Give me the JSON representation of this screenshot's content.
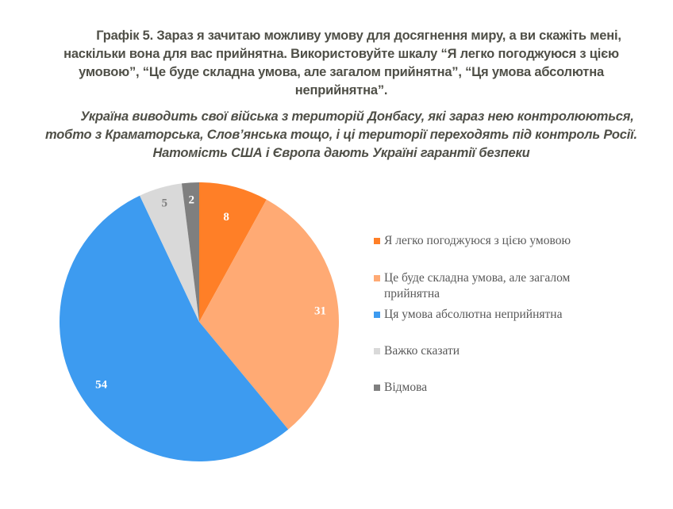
{
  "title": {
    "lines": [
      "Графік 5. Зараз я зачитаю можливу умову для досягнення миру, а ви скажіть мені,",
      "наскільки вона для вас прийнятна. Використовуйте шкалу “Я легко погоджуюся з цією",
      "умовою”, “Це буде складна умова, але загалом прийнятна”, “Ця умова абсолютна",
      "неприйнятна”."
    ]
  },
  "subtitle": {
    "lines": [
      "Україна виводить свої війська з територій Донбасу, які зараз нею контролюються,",
      "тобто з Краматорська, Слов’янська тощо, і ці території переходять під контроль Росії.",
      "Натомість США і Європа дають Україні гарантії безпеки"
    ]
  },
  "colors": {
    "text": "#4f4f47",
    "legend_text": "#595959",
    "easily_agree": "#ff7f27",
    "difficult_acceptable": "#ffaa74",
    "absolutely_unacceptable": "#3d9bf0",
    "hard_to_say": "#d9d9d9",
    "refusal": "#7f7f7f"
  },
  "legend": {
    "items": [
      {
        "label": "Я легко погоджуюся з цією умовою",
        "color": "#ff7f27"
      },
      {
        "label": "Це буде складна умова, але загалом прийнятна",
        "color": "#ffaa74"
      },
      {
        "label": "Ця умова абсолютна неприйнятна",
        "color": "#3d9bf0"
      },
      {
        "label": "Важко сказати",
        "color": "#d9d9d9"
      },
      {
        "label": "Відмова",
        "color": "#7f7f7f"
      }
    ]
  },
  "chart_data": {
    "type": "pie",
    "title": "Графік 5. Зараз я зачитаю можливу умову для досягнення миру, а ви скажіть мені, наскільки вона для вас прийнятна. Використовуйте шкалу “Я легко погоджуюся з цією умовою”, “Це буде складна умова, але загалом прийнятна”, “Ця умова абсолютна неприйнятна”.",
    "subtitle": "Україна виводить свої війська з територій Донбасу, які зараз нею контролюються, тобто з Краматорська, Слов’янська тощо, і ці території переходять під контроль Росії. Натомість США і Європа дають Україні гарантії безпеки",
    "categories": [
      "Я легко погоджуюся з цією умовою",
      "Це буде складна умова, але загалом прийнятна",
      "Ця умова абсолютна неприйнятна",
      "Важко сказати",
      "Відмова"
    ],
    "values": [
      8,
      31,
      54,
      5,
      2
    ],
    "data_labels": [
      "8",
      "31",
      "54",
      "5",
      "2"
    ],
    "colors": [
      "#ff7f27",
      "#ffaa74",
      "#3d9bf0",
      "#d9d9d9",
      "#7f7f7f"
    ],
    "label_colors": [
      "#ffffff",
      "#ffffff",
      "#ffffff",
      "#7f7f7f",
      "#ffffff"
    ],
    "start_angle_deg": 0,
    "direction": "clockwise",
    "unit": "%",
    "legend_position": "right"
  }
}
